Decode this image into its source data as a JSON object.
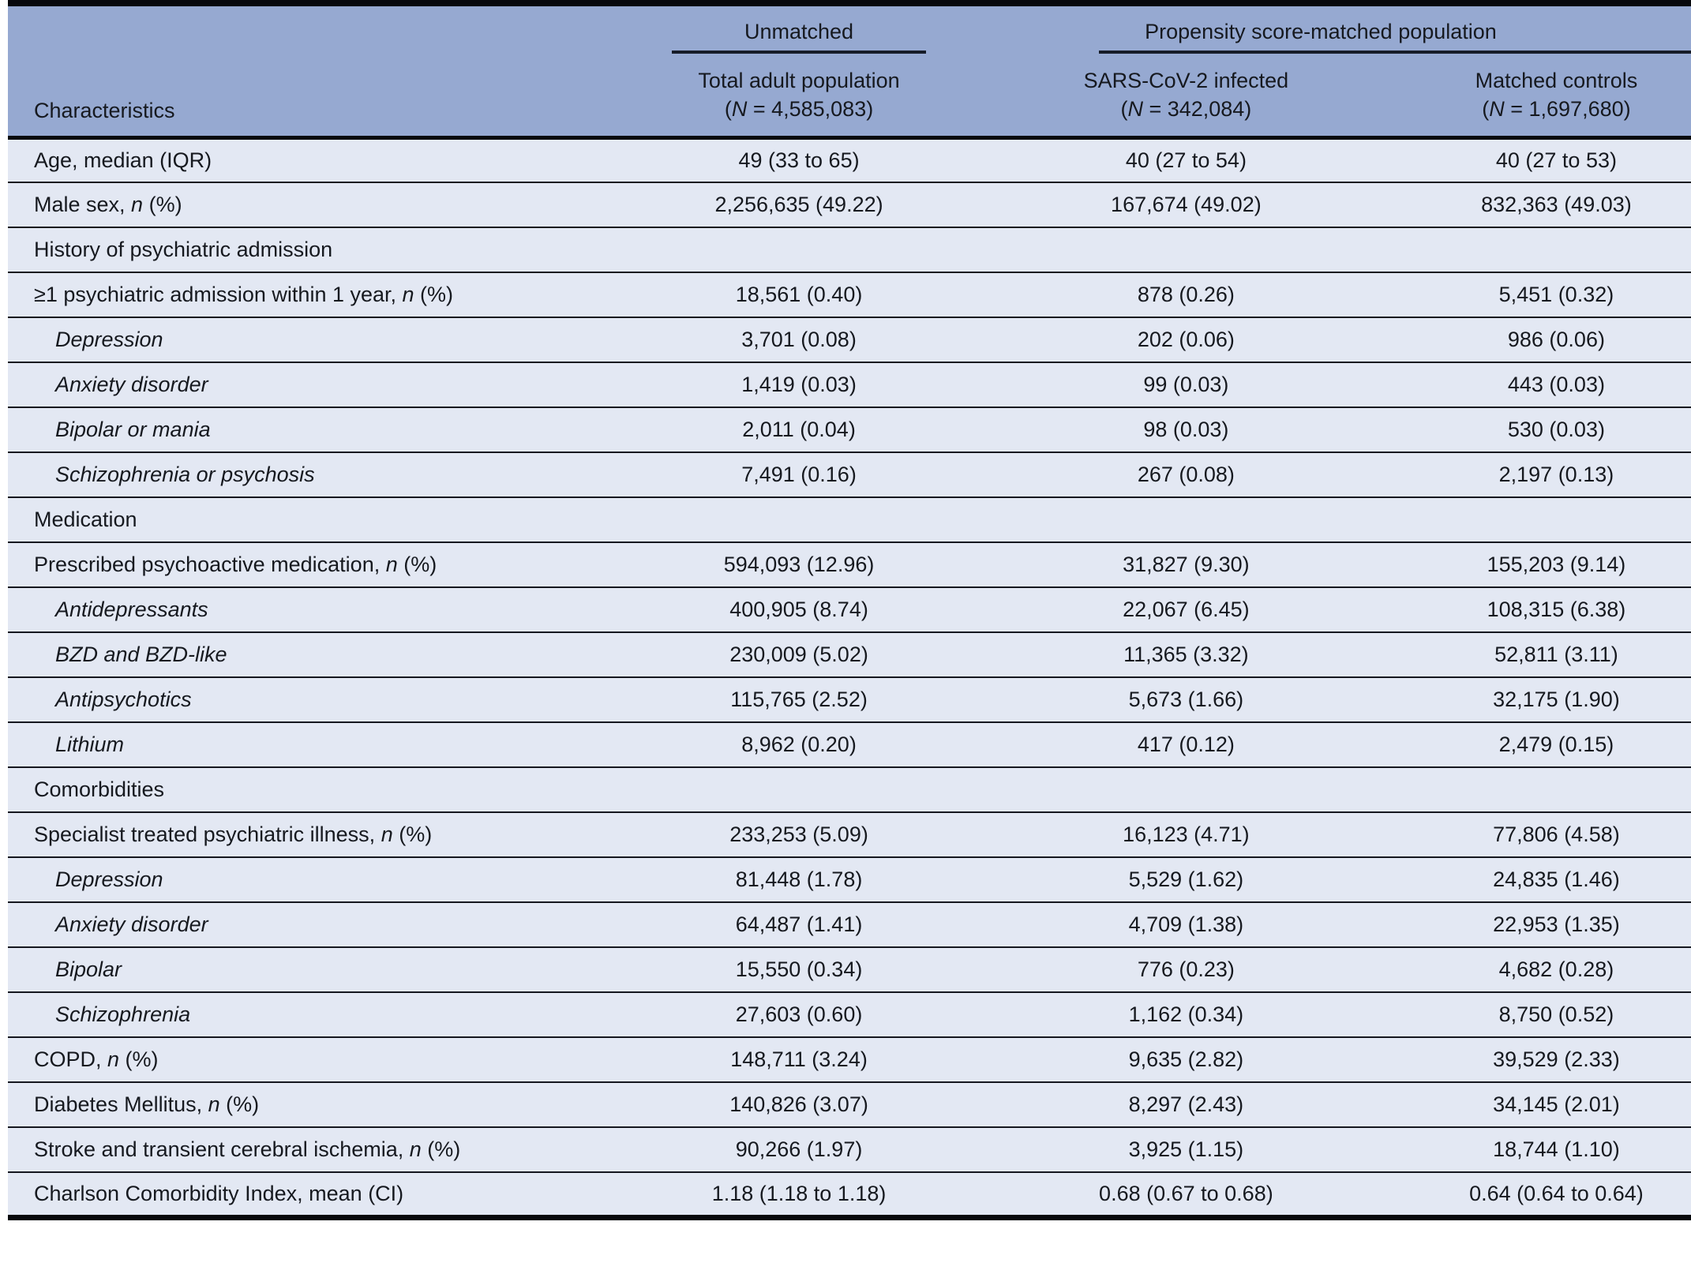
{
  "theme": {
    "header-bg": "#96a9d1",
    "row-bg": "#e3e8f3",
    "rule-strong": "#07080c",
    "rule-thin": "#15171e",
    "rule-spanner": "#161c28",
    "text": "#16191f",
    "page-bg": "#ffffff"
  },
  "table": {
    "header": {
      "characteristics": "Characteristics",
      "spanners": [
        {
          "label": "Unmatched"
        },
        {
          "label": "Propensity score-matched population"
        }
      ],
      "columns": [
        {
          "title": "Total adult population",
          "n_line": [
            [
              "r",
              "("
            ],
            [
              "i",
              "N"
            ],
            [
              "r",
              " = 4,585,083)"
            ]
          ]
        },
        {
          "title": "SARS-CoV-2 infected",
          "n_line": [
            [
              "r",
              "("
            ],
            [
              "i",
              "N"
            ],
            [
              "r",
              " = 342,084)"
            ]
          ]
        },
        {
          "title": "Matched controls",
          "n_line": [
            [
              "r",
              "("
            ],
            [
              "i",
              "N"
            ],
            [
              "r",
              " = 1,697,680)"
            ]
          ]
        }
      ]
    },
    "rows": [
      {
        "indent": false,
        "parts": [
          [
            "r",
            "Age, median (IQR)"
          ]
        ],
        "values": [
          "49 (33 to 65)",
          "40 (27 to 54)",
          "40 (27 to 53)"
        ]
      },
      {
        "indent": false,
        "parts": [
          [
            "r",
            "Male sex, "
          ],
          [
            "i",
            "n"
          ],
          [
            "r",
            " (%)"
          ]
        ],
        "values": [
          "2,256,635 (49.22)",
          "167,674 (49.02)",
          "832,363 (49.03)"
        ]
      },
      {
        "indent": false,
        "parts": [
          [
            "r",
            "History of psychiatric admission"
          ]
        ],
        "values": [
          "",
          "",
          ""
        ]
      },
      {
        "indent": false,
        "parts": [
          [
            "r",
            "≥1 psychiatric admission within 1 year, "
          ],
          [
            "i",
            "n"
          ],
          [
            "r",
            " (%)"
          ]
        ],
        "values": [
          "18,561 (0.40)",
          "878 (0.26)",
          "5,451 (0.32)"
        ]
      },
      {
        "indent": true,
        "parts": [
          [
            "i",
            "Depression"
          ]
        ],
        "values": [
          "3,701 (0.08)",
          "202 (0.06)",
          "986 (0.06)"
        ]
      },
      {
        "indent": true,
        "parts": [
          [
            "i",
            "Anxiety disorder"
          ]
        ],
        "values": [
          "1,419 (0.03)",
          "99 (0.03)",
          "443 (0.03)"
        ]
      },
      {
        "indent": true,
        "parts": [
          [
            "i",
            "Bipolar or mania"
          ]
        ],
        "values": [
          "2,011 (0.04)",
          "98 (0.03)",
          "530 (0.03)"
        ]
      },
      {
        "indent": true,
        "parts": [
          [
            "i",
            "Schizophrenia or psychosis"
          ]
        ],
        "values": [
          "7,491 (0.16)",
          "267 (0.08)",
          "2,197 (0.13)"
        ]
      },
      {
        "indent": false,
        "parts": [
          [
            "r",
            "Medication"
          ]
        ],
        "values": [
          "",
          "",
          ""
        ]
      },
      {
        "indent": false,
        "parts": [
          [
            "r",
            "Prescribed psychoactive medication, "
          ],
          [
            "i",
            "n"
          ],
          [
            "r",
            " (%)"
          ]
        ],
        "values": [
          "594,093 (12.96)",
          "31,827 (9.30)",
          "155,203 (9.14)"
        ]
      },
      {
        "indent": true,
        "parts": [
          [
            "i",
            "Antidepressants"
          ]
        ],
        "values": [
          "400,905 (8.74)",
          "22,067 (6.45)",
          "108,315 (6.38)"
        ]
      },
      {
        "indent": true,
        "parts": [
          [
            "i",
            "BZD and BZD-like"
          ]
        ],
        "values": [
          "230,009 (5.02)",
          "11,365 (3.32)",
          "52,811 (3.11)"
        ]
      },
      {
        "indent": true,
        "parts": [
          [
            "i",
            "Antipsychotics"
          ]
        ],
        "values": [
          "115,765 (2.52)",
          "5,673 (1.66)",
          "32,175 (1.90)"
        ]
      },
      {
        "indent": true,
        "parts": [
          [
            "i",
            "Lithium"
          ]
        ],
        "values": [
          "8,962 (0.20)",
          "417 (0.12)",
          "2,479 (0.15)"
        ]
      },
      {
        "indent": false,
        "parts": [
          [
            "r",
            "Comorbidities"
          ]
        ],
        "values": [
          "",
          "",
          ""
        ]
      },
      {
        "indent": false,
        "parts": [
          [
            "r",
            "Specialist treated psychiatric illness, "
          ],
          [
            "i",
            "n"
          ],
          [
            "r",
            " (%)"
          ]
        ],
        "values": [
          "233,253 (5.09)",
          "16,123 (4.71)",
          "77,806 (4.58)"
        ]
      },
      {
        "indent": true,
        "parts": [
          [
            "i",
            "Depression"
          ]
        ],
        "values": [
          "81,448 (1.78)",
          "5,529 (1.62)",
          "24,835 (1.46)"
        ]
      },
      {
        "indent": true,
        "parts": [
          [
            "i",
            "Anxiety disorder"
          ]
        ],
        "values": [
          "64,487 (1.41)",
          "4,709 (1.38)",
          "22,953 (1.35)"
        ]
      },
      {
        "indent": true,
        "parts": [
          [
            "i",
            "Bipolar"
          ]
        ],
        "values": [
          "15,550 (0.34)",
          "776 (0.23)",
          "4,682 (0.28)"
        ]
      },
      {
        "indent": true,
        "parts": [
          [
            "i",
            "Schizophrenia"
          ]
        ],
        "values": [
          "27,603 (0.60)",
          "1,162 (0.34)",
          "8,750 (0.52)"
        ]
      },
      {
        "indent": false,
        "parts": [
          [
            "r",
            "COPD, "
          ],
          [
            "i",
            "n"
          ],
          [
            "r",
            " (%)"
          ]
        ],
        "values": [
          "148,711 (3.24)",
          "9,635 (2.82)",
          "39,529 (2.33)"
        ]
      },
      {
        "indent": false,
        "parts": [
          [
            "r",
            "Diabetes Mellitus, "
          ],
          [
            "i",
            "n"
          ],
          [
            "r",
            " (%)"
          ]
        ],
        "values": [
          "140,826 (3.07)",
          "8,297 (2.43)",
          "34,145 (2.01)"
        ]
      },
      {
        "indent": false,
        "parts": [
          [
            "r",
            "Stroke and transient cerebral ischemia, "
          ],
          [
            "i",
            "n"
          ],
          [
            "r",
            " (%)"
          ]
        ],
        "values": [
          "90,266 (1.97)",
          "3,925 (1.15)",
          "18,744 (1.10)"
        ]
      },
      {
        "indent": false,
        "parts": [
          [
            "r",
            "Charlson Comorbidity Index, mean (CI)"
          ]
        ],
        "values": [
          "1.18 (1.18 to 1.18)",
          "0.68 (0.67 to 0.68)",
          "0.64 (0.64 to 0.64)"
        ]
      }
    ]
  }
}
